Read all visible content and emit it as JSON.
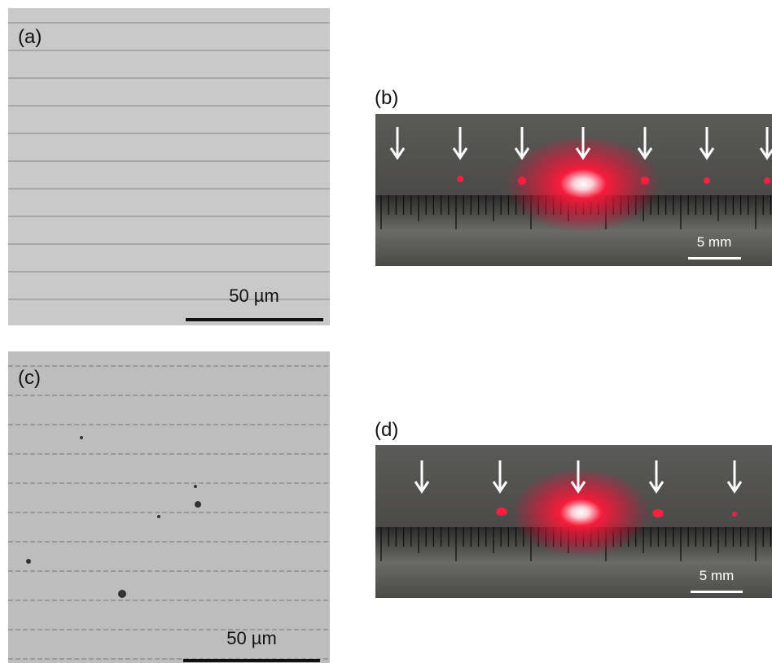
{
  "panels": [
    {
      "label": "(a)",
      "scale_bar": "50 µm"
    },
    {
      "label": "(b)",
      "scale_bar": "5 mm"
    },
    {
      "label": "(c)",
      "scale_bar": "50 µm"
    },
    {
      "label": "(d)",
      "scale_bar": "5 mm"
    }
  ]
}
